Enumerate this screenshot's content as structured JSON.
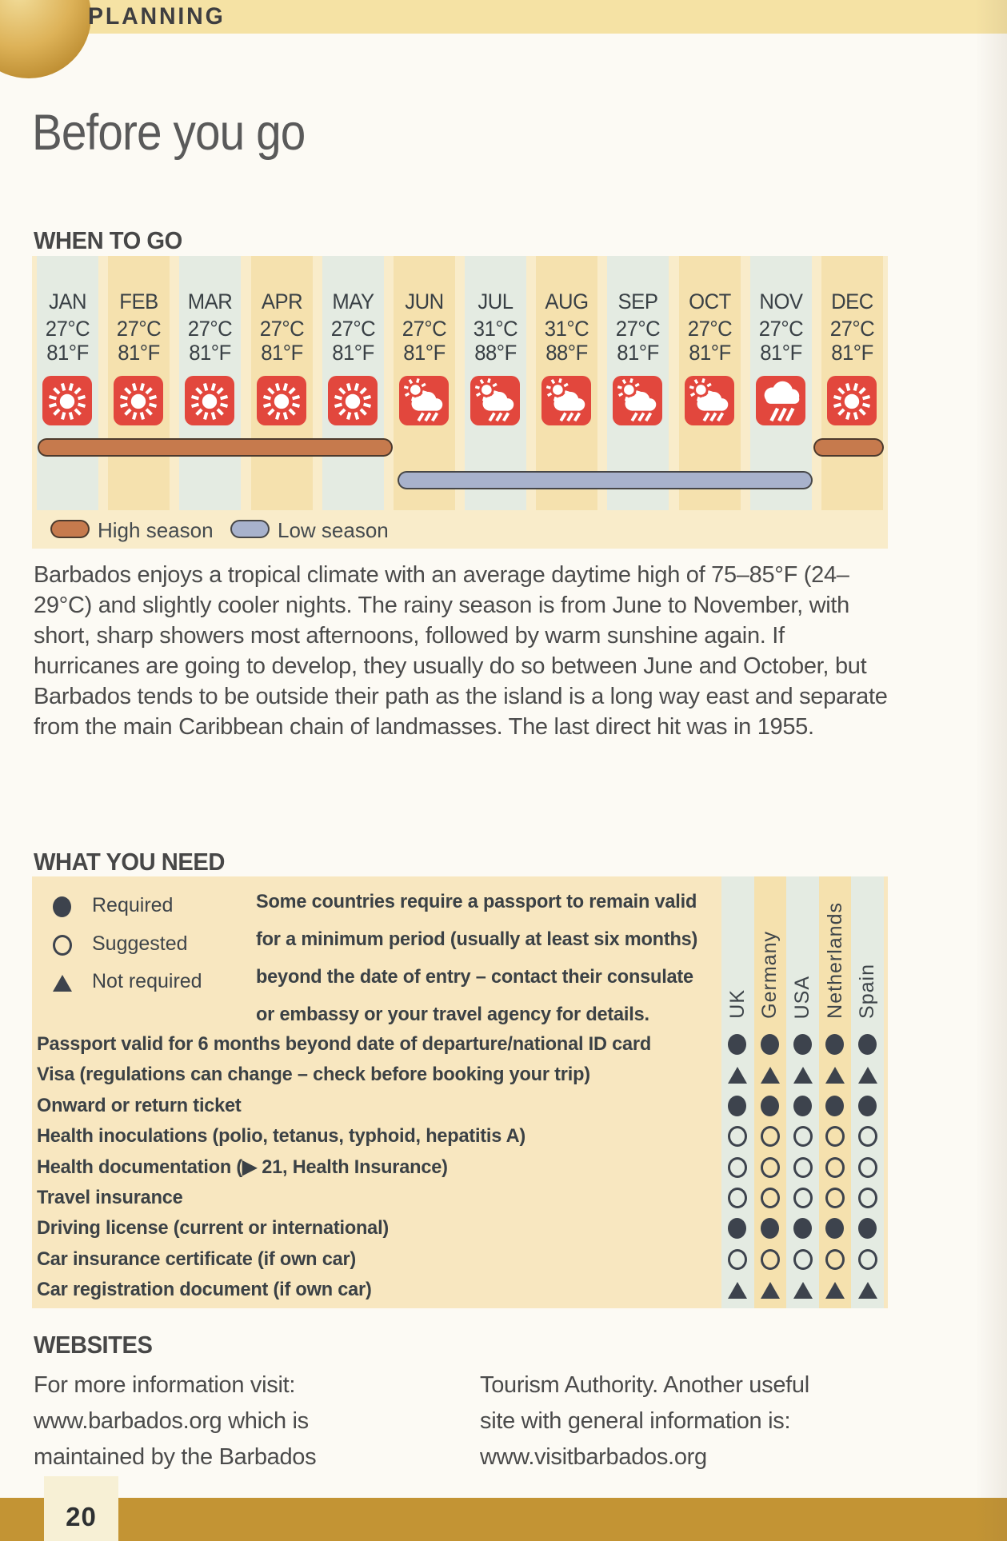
{
  "page": {
    "section_label": "PLANNING",
    "title": "Before you go",
    "page_number": "20"
  },
  "colors": {
    "band": "#f5e2a4",
    "chart_panel_bg": "#f9ecca",
    "stripe_mint": "#e4ebe2",
    "stripe_gold": "#f5e1ae",
    "tile_red": "#e2473d",
    "high_season": "#c67a4d",
    "low_season": "#a8b2cc",
    "need_panel_bg": "#f8e7c0",
    "symbol": "#3d434d",
    "footer_bar": "#c39434"
  },
  "when_to_go": {
    "heading": "WHEN TO GO",
    "months": [
      {
        "name": "JAN",
        "temp_c": "27°C",
        "temp_f": "81°F",
        "icon": "sun"
      },
      {
        "name": "FEB",
        "temp_c": "27°C",
        "temp_f": "81°F",
        "icon": "sun"
      },
      {
        "name": "MAR",
        "temp_c": "27°C",
        "temp_f": "81°F",
        "icon": "sun"
      },
      {
        "name": "APR",
        "temp_c": "27°C",
        "temp_f": "81°F",
        "icon": "sun"
      },
      {
        "name": "MAY",
        "temp_c": "27°C",
        "temp_f": "81°F",
        "icon": "sun"
      },
      {
        "name": "JUN",
        "temp_c": "27°C",
        "temp_f": "81°F",
        "icon": "sun-rain"
      },
      {
        "name": "JUL",
        "temp_c": "31°C",
        "temp_f": "88°F",
        "icon": "sun-rain"
      },
      {
        "name": "AUG",
        "temp_c": "31°C",
        "temp_f": "88°F",
        "icon": "sun-rain"
      },
      {
        "name": "SEP",
        "temp_c": "27°C",
        "temp_f": "81°F",
        "icon": "sun-rain"
      },
      {
        "name": "OCT",
        "temp_c": "27°C",
        "temp_f": "81°F",
        "icon": "sun-rain"
      },
      {
        "name": "NOV",
        "temp_c": "27°C",
        "temp_f": "81°F",
        "icon": "rain"
      },
      {
        "name": "DEC",
        "temp_c": "27°C",
        "temp_f": "81°F",
        "icon": "sun"
      }
    ],
    "seasons": {
      "high_label": "High season",
      "low_label": "Low season",
      "high_months": [
        "JAN",
        "FEB",
        "MAR",
        "APR",
        "MAY",
        "DEC"
      ],
      "low_months": [
        "JUN",
        "JUL",
        "AUG",
        "SEP",
        "OCT",
        "NOV"
      ]
    },
    "intro": "Barbados enjoys a tropical climate with an average daytime high of 75–85°F (24–29°C) and slightly cooler nights. The rainy season is from June to November, with short, sharp showers most afternoons, followed by warm sunshine again. If hurricanes are going to develop, they usually do so between June and October, but Barbados tends to be outside their path as the island is a long way east and separate from the main Caribbean chain of landmasses. The last direct hit was in 1955."
  },
  "what_you_need": {
    "heading": "WHAT YOU NEED",
    "legend": [
      {
        "symbol": "required",
        "label": "Required"
      },
      {
        "symbol": "suggested",
        "label": "Suggested"
      },
      {
        "symbol": "not_required",
        "label": "Not required"
      }
    ],
    "note_lines": [
      "Some countries require a passport to remain valid",
      "for a minimum period (usually at least six months)",
      "beyond the date of entry – contact their consulate",
      "or embassy or your travel agency for details."
    ],
    "countries": [
      "UK",
      "Germany",
      "USA",
      "Netherlands",
      "Spain"
    ],
    "rows": [
      {
        "label": "Passport valid for 6 months beyond date of departure/national ID card",
        "marks": [
          "required",
          "required",
          "required",
          "required",
          "required"
        ]
      },
      {
        "label": "Visa (regulations can change – check before booking your trip)",
        "marks": [
          "not_required",
          "not_required",
          "not_required",
          "not_required",
          "not_required"
        ]
      },
      {
        "label": "Onward or return ticket",
        "marks": [
          "required",
          "required",
          "required",
          "required",
          "required"
        ]
      },
      {
        "label": "Health inoculations (polio, tetanus, typhoid, hepatitis A)",
        "marks": [
          "suggested",
          "suggested",
          "suggested",
          "suggested",
          "suggested"
        ]
      },
      {
        "label": "Health documentation (▶ 21, Health Insurance)",
        "marks": [
          "suggested",
          "suggested",
          "suggested",
          "suggested",
          "suggested"
        ]
      },
      {
        "label": "Travel insurance",
        "marks": [
          "suggested",
          "suggested",
          "suggested",
          "suggested",
          "suggested"
        ]
      },
      {
        "label": "Driving license (current or international)",
        "marks": [
          "required",
          "required",
          "required",
          "required",
          "required"
        ]
      },
      {
        "label": "Car insurance certificate (if own car)",
        "marks": [
          "suggested",
          "suggested",
          "suggested",
          "suggested",
          "suggested"
        ]
      },
      {
        "label": "Car registration document (if own car)",
        "marks": [
          "not_required",
          "not_required",
          "not_required",
          "not_required",
          "not_required"
        ]
      }
    ]
  },
  "websites": {
    "heading": "WEBSITES",
    "left_lines": [
      "For more information visit:",
      "www.barbados.org which is",
      "maintained by the Barbados"
    ],
    "right_lines": [
      "Tourism Authority. Another useful",
      "site with general information is:",
      "www.visitbarbados.org"
    ]
  }
}
